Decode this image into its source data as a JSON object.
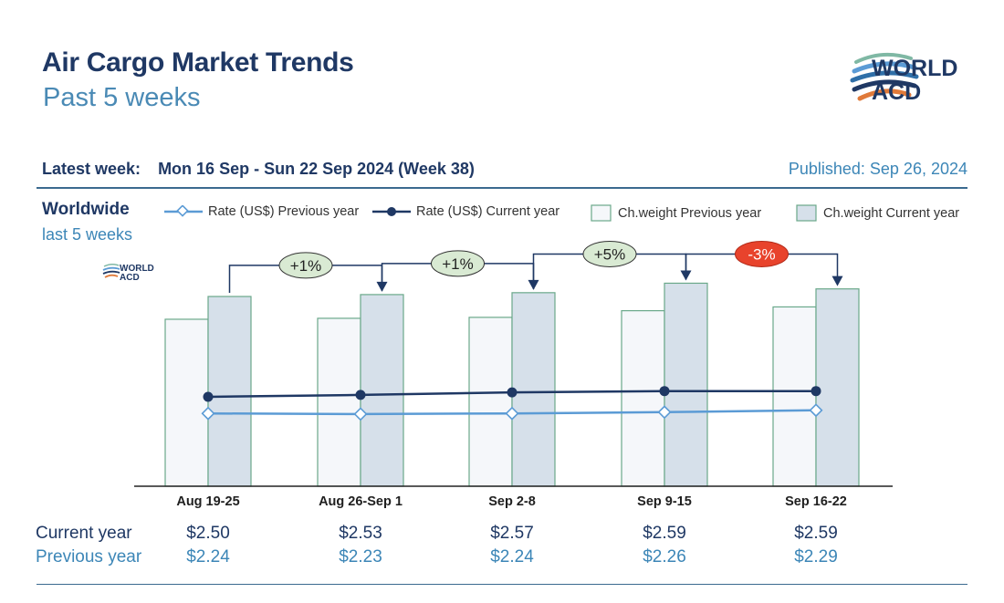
{
  "header": {
    "title": "Air Cargo Market Trends",
    "subtitle": "Past 5 weeks",
    "logo_line1": "WORLD",
    "logo_line2": "ACD",
    "latest_week_label": "Latest week:",
    "latest_week_value": "Mon 16 Sep - Sun 22 Sep 2024 (Week 38)",
    "published": "Published: Sep 26, 2024"
  },
  "region": {
    "name": "Worldwide",
    "period": "last 5 weeks"
  },
  "legend": {
    "rate_prev": "Rate (US$) Previous year",
    "rate_cur": "Rate (US$) Current year",
    "cw_prev": "Ch.weight Previous year",
    "cw_cur": "Ch.weight Current year"
  },
  "colors": {
    "rate_prev": "#5b9bd5",
    "rate_cur": "#1f3864",
    "bar_prev_fill": "#f5f7fa",
    "bar_cur_fill": "#d6e0ea",
    "bar_stroke": "#6aa88a",
    "badge_pos": "#d9ead3",
    "badge_neg": "#e8432c"
  },
  "table": {
    "current_label": "Current year",
    "previous_label": "Previous year",
    "current": [
      "$2.50",
      "$2.53",
      "$2.57",
      "$2.59",
      "$2.59"
    ],
    "previous": [
      "$2.24",
      "$2.23",
      "$2.24",
      "$2.26",
      "$2.29"
    ]
  },
  "chart_data": {
    "type": "bar",
    "categories": [
      "Aug 19-25",
      "Aug 26-Sep 1",
      "Sep 2-8",
      "Sep 9-15",
      "Sep 16-22"
    ],
    "series": [
      {
        "name": "Ch.weight Previous year",
        "type": "bar",
        "values": [
          0.88,
          0.885,
          0.89,
          0.925,
          0.945
        ]
      },
      {
        "name": "Ch.weight Current year",
        "type": "bar",
        "values": [
          1.0,
          1.01,
          1.02,
          1.07,
          1.04
        ]
      },
      {
        "name": "Rate (US$) Current year",
        "type": "line",
        "values": [
          2.5,
          2.53,
          2.57,
          2.59,
          2.59
        ]
      },
      {
        "name": "Rate (US$) Previous year",
        "type": "line",
        "values": [
          2.24,
          2.23,
          2.24,
          2.26,
          2.29
        ]
      }
    ],
    "week_changes": [
      "+1%",
      "+1%",
      "+5%",
      "-3%"
    ],
    "grid": false
  }
}
